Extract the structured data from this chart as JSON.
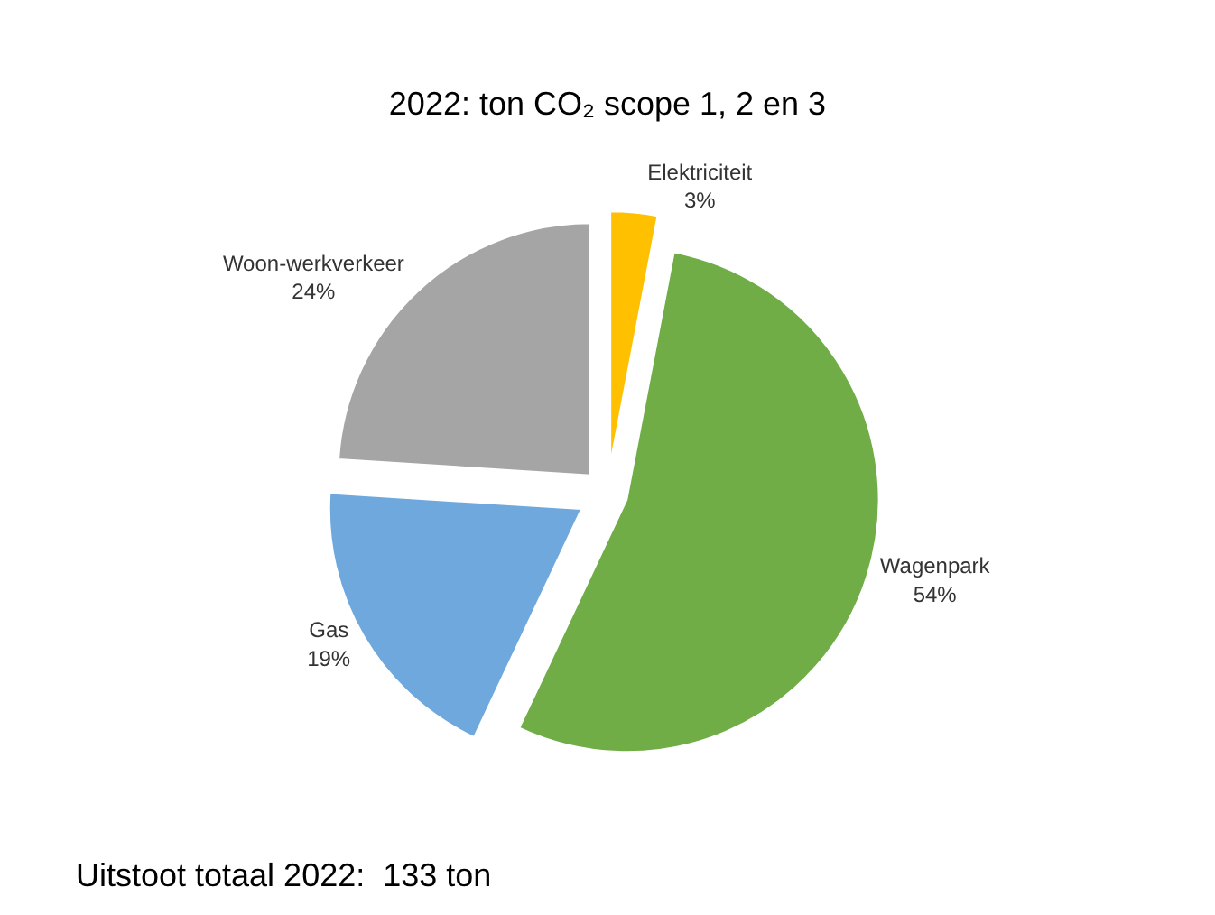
{
  "chart_data": {
    "type": "pie",
    "title": "2022: ton CO₂ scope 1, 2 en 3",
    "categories": [
      "Elektriciteit",
      "Wagenpark",
      "Gas",
      "Woon-werkverkeer"
    ],
    "values": [
      3,
      54,
      19,
      24
    ],
    "colors": [
      "#ffc000",
      "#70ad47",
      "#6fa8dc",
      "#a5a5a5"
    ],
    "value_labels": [
      "3%",
      "54%",
      "19%",
      "24%"
    ],
    "annotations": [
      "Uitstoot totaal 2022:  133 ton"
    ],
    "legend": false
  }
}
